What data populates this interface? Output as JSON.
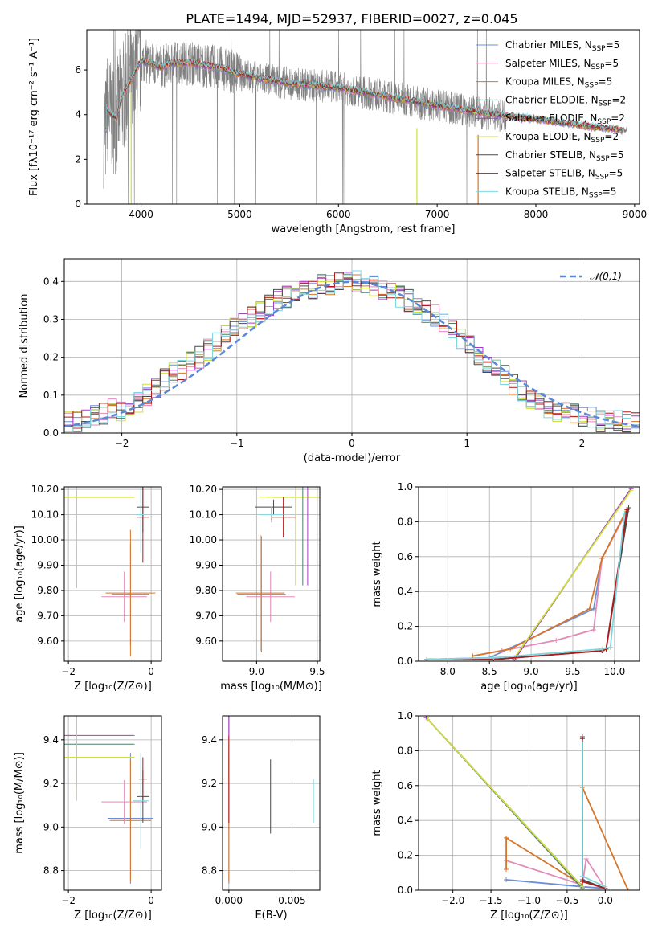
{
  "figure_title": "PLATE=1494, MJD=52937, FIBERID=0027, z=0.045",
  "colors": {
    "Chabrier MILES": "#6b8fd8",
    "Salpeter MILES": "#e28ab8",
    "Kroupa MILES": "#d5762a",
    "Chabrier ELODIE": "#4f7f6a",
    "Salpeter ELODIE": "#a93ac8",
    "Kroupa ELODIE": "#cde13c",
    "Chabrier STELIB": "#4a4a4a",
    "Salpeter STELIB": "#b01a1a",
    "Kroupa STELIB": "#7fd6df",
    "data": "#808080",
    "normal": "#5b88d6"
  },
  "chart_data": [
    {
      "id": "spectrum",
      "type": "line",
      "title": "PLATE=1494, MJD=52937, FIBERID=0027, z=0.045",
      "xlabel": "wavelength [Angstrom, rest frame]",
      "ylabel": "Flux [fλ10⁻¹⁷ erg cm⁻² s⁻¹ A⁻¹]",
      "xlim": [
        3450,
        9050
      ],
      "ylim": [
        0,
        7.8
      ],
      "xticks": [
        4000,
        5000,
        6000,
        7000,
        8000,
        9000
      ],
      "yticks": [
        0,
        2,
        4,
        6
      ],
      "legend": [
        "Chabrier MILES, N_SSP=5",
        "Salpeter MILES, N_SSP=5",
        "Kroupa MILES, N_SSP=5",
        "Chabrier ELODIE, N_SSP=2",
        "Salpeter ELODIE, N_SSP=2",
        "Kroupa ELODIE, N_SSP=2",
        "Chabrier STELIB, N_SSP=5",
        "Salpeter STELIB, N_SSP=5",
        "Kroupa STELIB, N_SSP=5"
      ],
      "legend_position": "top-right",
      "model_continuum": {
        "x": [
          3650,
          3700,
          3750,
          3800,
          3900,
          4000,
          4100,
          4200,
          4300,
          4500,
          4800,
          5000,
          5500,
          6000,
          6500,
          7000,
          7500,
          8000,
          8500,
          8900
        ],
        "y": [
          4.3,
          4.0,
          3.8,
          4.7,
          5.6,
          6.4,
          6.3,
          6.1,
          6.3,
          6.3,
          6.1,
          5.8,
          5.4,
          5.2,
          4.8,
          4.4,
          4.05,
          3.8,
          3.5,
          3.3
        ]
      },
      "grid": false
    },
    {
      "id": "residual-histogram",
      "type": "histogram",
      "xlabel": "(data-model)/error",
      "ylabel": "Normed distribution",
      "xlim": [
        -2.5,
        2.5
      ],
      "ylim": [
        0,
        0.46
      ],
      "xticks": [
        -2,
        -1,
        0,
        1,
        2
      ],
      "yticks": [
        0.0,
        0.1,
        0.2,
        0.3,
        0.4
      ],
      "legend": [
        "𝒩(0,1)"
      ],
      "legend_position": "top-right",
      "bin_width": 0.1,
      "histogram_base": [
        0.03,
        0.03,
        0.04,
        0.05,
        0.05,
        0.06,
        0.06,
        0.07,
        0.08,
        0.1,
        0.12,
        0.14,
        0.16,
        0.17,
        0.19,
        0.2,
        0.22,
        0.24,
        0.26,
        0.28,
        0.3,
        0.31,
        0.32,
        0.34,
        0.35,
        0.36,
        0.37,
        0.38,
        0.38,
        0.39,
        0.39,
        0.4,
        0.4,
        0.4,
        0.39,
        0.39,
        0.38,
        0.37,
        0.36,
        0.35,
        0.33,
        0.32,
        0.31,
        0.29,
        0.27,
        0.25,
        0.23,
        0.21,
        0.19,
        0.17,
        0.15,
        0.13,
        0.11,
        0.09,
        0.08,
        0.07,
        0.06,
        0.05,
        0.05,
        0.04,
        0.04,
        0.03,
        0.03,
        0.03,
        0.03,
        0.03
      ],
      "grid": true
    },
    {
      "id": "age-vs-Z",
      "type": "scatter",
      "xlabel": "Z [log₁₀(Z/Z⊙)]",
      "ylabel": "age  [log₁₀(age/yr)]",
      "xlim": [
        -2.1,
        0.25
      ],
      "ylim": [
        9.52,
        10.21
      ],
      "xticks": [
        -2,
        0
      ],
      "yticks": [
        9.6,
        9.7,
        9.8,
        9.9,
        10.0,
        10.1,
        10.2
      ],
      "grid": true
    },
    {
      "id": "age-vs-mass",
      "type": "scatter",
      "xlabel": "mass [log₁₀(M/M⊙)]",
      "ylabel": "",
      "xlim": [
        8.72,
        9.52
      ],
      "ylim": [
        9.52,
        10.21
      ],
      "xticks": [
        9.0,
        9.5
      ],
      "yticks": [
        9.6,
        9.7,
        9.8,
        9.9,
        10.0,
        10.1,
        10.2
      ],
      "grid": true
    },
    {
      "id": "weight-vs-age",
      "type": "line",
      "xlabel": "age  [log₁₀(age/yr)]",
      "ylabel": "mass weight",
      "xlim": [
        7.65,
        10.3
      ],
      "ylim": [
        0,
        1.0
      ],
      "xticks": [
        8.0,
        8.5,
        9.0,
        9.5,
        10.0
      ],
      "yticks": [
        0.0,
        0.2,
        0.4,
        0.6,
        0.8,
        1.0
      ],
      "series": [
        {
          "key": "Chabrier MILES",
          "x": [
            7.75,
            8.5,
            9.75,
            9.85,
            10.15
          ],
          "y": [
            0.01,
            0.02,
            0.3,
            0.59,
            0.87
          ]
        },
        {
          "key": "Salpeter MILES",
          "x": [
            8.3,
            8.65,
            9.3,
            9.75,
            9.85,
            10.15
          ],
          "y": [
            0.03,
            0.06,
            0.12,
            0.18,
            0.59,
            0.86
          ]
        },
        {
          "key": "Kroupa MILES",
          "x": [
            8.3,
            8.75,
            9.7,
            9.85,
            10.15
          ],
          "y": [
            0.03,
            0.07,
            0.3,
            0.59,
            0.87
          ]
        },
        {
          "key": "Chabrier ELODIE",
          "x": [
            8.8,
            10.2
          ],
          "y": [
            0.01,
            0.99
          ]
        },
        {
          "key": "Salpeter ELODIE",
          "x": [
            8.8,
            10.2
          ],
          "y": [
            0.01,
            0.99
          ]
        },
        {
          "key": "Kroupa ELODIE",
          "x": [
            8.8,
            10.2
          ],
          "y": [
            0.02,
            0.98
          ]
        },
        {
          "key": "Chabrier STELIB",
          "x": [
            7.75,
            8.55,
            9.85,
            9.9,
            10.17
          ],
          "y": [
            0.01,
            0.01,
            0.06,
            0.07,
            0.88
          ]
        },
        {
          "key": "Salpeter STELIB",
          "x": [
            7.75,
            8.55,
            9.85,
            9.9,
            10.15
          ],
          "y": [
            0.01,
            0.01,
            0.06,
            0.07,
            0.87
          ]
        },
        {
          "key": "Kroupa STELIB",
          "x": [
            7.75,
            8.55,
            9.85,
            9.95,
            10.12
          ],
          "y": [
            0.01,
            0.02,
            0.07,
            0.08,
            0.85
          ]
        }
      ],
      "grid": true
    },
    {
      "id": "mass-vs-Z",
      "type": "scatter",
      "xlabel": "Z [log₁₀(Z/Z⊙)]",
      "ylabel": "mass [log₁₀(M/M⊙)]",
      "xlim": [
        -2.1,
        0.25
      ],
      "ylim": [
        8.71,
        9.51
      ],
      "xticks": [
        -2,
        0
      ],
      "yticks": [
        8.8,
        9.0,
        9.2,
        9.4
      ],
      "grid": true
    },
    {
      "id": "mass-vs-EBV",
      "type": "scatter",
      "xlabel": "E(B-V)",
      "ylabel": "",
      "xlim": [
        -0.0005,
        0.0072
      ],
      "ylim": [
        8.71,
        9.51
      ],
      "xticks": [
        0.0,
        0.005
      ],
      "xtick_labels": [
        "0.000",
        "0.005"
      ],
      "yticks": [
        8.8,
        9.0,
        9.2,
        9.4
      ],
      "grid": true
    },
    {
      "id": "weight-vs-Z",
      "type": "line",
      "xlabel": "Z [log₁₀(Z/Z⊙)]",
      "ylabel": "mass weight",
      "xlim": [
        -2.45,
        0.45
      ],
      "ylim": [
        0,
        1.0
      ],
      "xticks": [
        -2.0,
        -1.5,
        -1.0,
        -0.5,
        0.0
      ],
      "yticks": [
        0.0,
        0.2,
        0.4,
        0.6,
        0.8,
        1.0
      ],
      "series": [
        {
          "key": "Chabrier MILES",
          "x": [
            -1.3,
            -0.3,
            0.0
          ],
          "y": [
            0.06,
            0.02,
            0.01
          ]
        },
        {
          "key": "Salpeter MILES",
          "x": [
            -1.3,
            -0.3,
            -0.25,
            0.0
          ],
          "y": [
            0.17,
            0.03,
            0.18,
            0.01
          ]
        },
        {
          "key": "Kroupa MILES",
          "x": [
            -1.3,
            -1.3,
            -0.3,
            -0.3,
            0.3
          ],
          "y": [
            0.12,
            0.3,
            0.03,
            0.59,
            0.0
          ]
        },
        {
          "key": "Chabrier ELODIE",
          "x": [
            -2.35,
            -0.3
          ],
          "y": [
            0.99,
            0.01
          ]
        },
        {
          "key": "Salpeter ELODIE",
          "x": [
            -2.35,
            -0.3
          ],
          "y": [
            0.99,
            0.02
          ]
        },
        {
          "key": "Kroupa ELODIE",
          "x": [
            -2.33,
            -0.3
          ],
          "y": [
            0.98,
            0.02
          ]
        },
        {
          "key": "Chabrier STELIB",
          "x": [
            -0.3,
            -0.3,
            0.0
          ],
          "y": [
            0.88,
            0.06,
            0.01
          ]
        },
        {
          "key": "Salpeter STELIB",
          "x": [
            -0.3,
            -0.3,
            0.0
          ],
          "y": [
            0.87,
            0.05,
            0.01
          ]
        },
        {
          "key": "Kroupa STELIB",
          "x": [
            -0.3,
            -0.3,
            0.0
          ],
          "y": [
            0.85,
            0.08,
            0.02
          ]
        }
      ],
      "grid": true
    }
  ],
  "scatter_points": {
    "Chabrier MILES": {
      "Z": -0.5,
      "age": 9.785,
      "mass": 9.04,
      "ebv": 0.0
    },
    "Salpeter MILES": {
      "Z": -0.65,
      "age": 9.775,
      "mass": 9.115,
      "ebv": 0.0
    },
    "Kroupa MILES": {
      "Z": -0.5,
      "age": 9.79,
      "mass": 9.03,
      "ebv": 0.0
    },
    "Chabrier ELODIE": {
      "Z": -1.8,
      "age": 10.17,
      "mass": 9.38,
      "ebv": 0.0
    },
    "Salpeter ELODIE": {
      "Z": -1.8,
      "age": 10.17,
      "mass": 9.42,
      "ebv": 0.0
    },
    "Kroupa ELODIE": {
      "Z": -1.8,
      "age": 10.17,
      "mass": 9.32,
      "ebv": 0.0
    },
    "Chabrier STELIB": {
      "Z": -0.2,
      "age": 10.13,
      "mass": 9.14,
      "ebv": 0.0033
    },
    "Salpeter STELIB": {
      "Z": -0.2,
      "age": 10.09,
      "mass": 9.22,
      "ebv": 0.0
    },
    "Kroupa STELIB": {
      "Z": -0.25,
      "age": 10.1,
      "mass": 9.12,
      "ebv": 0.0067
    }
  }
}
